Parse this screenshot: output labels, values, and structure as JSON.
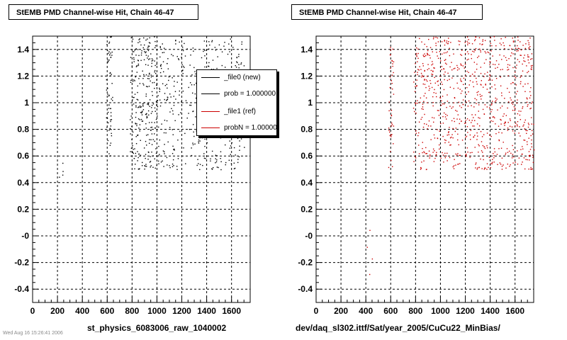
{
  "chart_data": [
    {
      "type": "scatter",
      "title": "StEMB PMD Channel-wise Hit, Chain 46-47",
      "xlabel": "st_physics_6083006_raw_1040002",
      "ylabel": "",
      "xlim": [
        0,
        1750
      ],
      "ylim": [
        -0.5,
        1.5
      ],
      "x_ticks": [
        0,
        200,
        400,
        600,
        800,
        1000,
        1200,
        1400,
        1600
      ],
      "y_ticks": [
        -0.4,
        -0.2,
        0,
        0.2,
        0.4,
        0.6,
        0.8,
        1,
        1.2,
        1.4
      ],
      "y_tick_labels": [
        "-0.4",
        "-0.2",
        "-0",
        "0.2",
        "0.4",
        "0.6",
        "0.8",
        "1",
        "1.2",
        "1.4"
      ],
      "grid": true,
      "legend_position": "top-right",
      "series": [
        {
          "name": "_file0 (new)",
          "color": "#000000",
          "clusters": [
            {
              "x": [
                590,
                640
              ],
              "y": [
                0.6,
                1.5
              ],
              "n": 60
            },
            {
              "x": [
                780,
                1000
              ],
              "y": [
                0.5,
                1.5
              ],
              "n": 260
            },
            {
              "x": [
                1000,
                1700
              ],
              "y": [
                0.5,
                1.5
              ],
              "n": 380
            },
            {
              "x": [
                200,
                250
              ],
              "y": [
                0.4,
                0.6
              ],
              "n": 4
            }
          ]
        }
      ],
      "legend": [
        {
          "label": "_file0 (new)",
          "color": "#000000"
        },
        {
          "label": "prob = 1.000000",
          "color": "#000000"
        },
        {
          "label": "_file1 (ref)",
          "color": "#cc0000"
        },
        {
          "label": "probN = 1.000000",
          "color": "#cc0000"
        }
      ]
    },
    {
      "type": "scatter",
      "title": "StEMB PMD Channel-wise Hit, Chain 46-47",
      "xlabel": "dev/daq_sl302.ittf/Sat/year_2005/CuCu22_MinBias/",
      "ylabel": "",
      "xlim": [
        0,
        1750
      ],
      "ylim": [
        -0.5,
        1.5
      ],
      "x_ticks": [
        0,
        200,
        400,
        600,
        800,
        1000,
        1200,
        1400,
        1600
      ],
      "y_ticks": [
        -0.4,
        -0.2,
        0,
        0.2,
        0.4,
        0.6,
        0.8,
        1,
        1.2,
        1.4
      ],
      "y_tick_labels": [
        "-0.4",
        "-0.2",
        "-0",
        "0.2",
        "0.4",
        "0.6",
        "0.8",
        "1",
        "1.2",
        "1.4"
      ],
      "grid": true,
      "series": [
        {
          "name": "_file1 (ref)",
          "color": "#cc0000",
          "clusters": [
            {
              "x": [
                580,
                620
              ],
              "y": [
                0.5,
                1.5
              ],
              "n": 40
            },
            {
              "x": [
                780,
                1750
              ],
              "y": [
                0.5,
                1.5
              ],
              "n": 820
            },
            {
              "x": [
                400,
                450
              ],
              "y": [
                -0.3,
                0.1
              ],
              "n": 4
            }
          ]
        }
      ]
    }
  ],
  "footnote": "Wed Aug 16 15:26:41 2006"
}
